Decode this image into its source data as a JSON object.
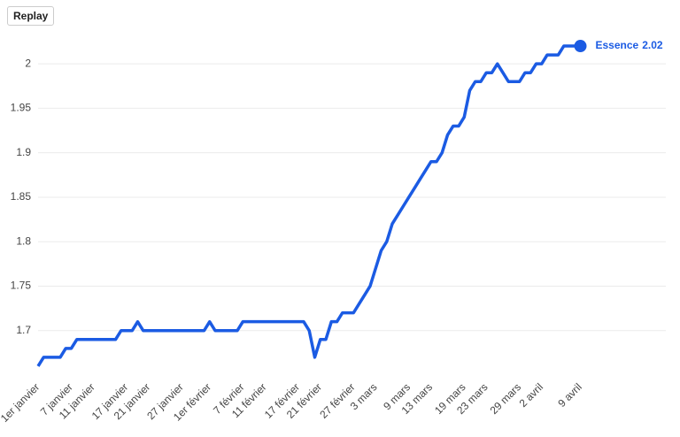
{
  "button": "Replay",
  "chart_data": {
    "type": "line",
    "categories": [
      "1er janvier",
      null,
      null,
      null,
      null,
      null,
      "7 janvier",
      null,
      null,
      null,
      "11 janvier",
      null,
      null,
      null,
      null,
      null,
      "17 janvier",
      null,
      null,
      null,
      "21 janvier",
      null,
      null,
      null,
      null,
      null,
      "27 janvier",
      null,
      null,
      null,
      null,
      "1er février",
      null,
      null,
      null,
      null,
      null,
      "7 février",
      null,
      null,
      null,
      "11 février",
      null,
      null,
      null,
      null,
      null,
      "17 février",
      null,
      null,
      null,
      "21 février",
      null,
      null,
      null,
      null,
      null,
      "27 février",
      null,
      null,
      null,
      "3 mars",
      null,
      null,
      null,
      null,
      null,
      "9 mars",
      null,
      null,
      null,
      "13 mars",
      null,
      null,
      null,
      null,
      null,
      "19 mars",
      null,
      null,
      null,
      "23 mars",
      null,
      null,
      null,
      null,
      null,
      "29 mars",
      null,
      null,
      null,
      "2 avril",
      null,
      null,
      null,
      null,
      null,
      null,
      "9 avril"
    ],
    "series": [
      {
        "name": "Essence",
        "color": "#1b5be3",
        "values": [
          1.66,
          1.67,
          1.67,
          1.67,
          1.67,
          1.68,
          1.68,
          1.69,
          1.69,
          1.69,
          1.69,
          1.69,
          1.69,
          1.69,
          1.69,
          1.7,
          1.7,
          1.7,
          1.71,
          1.7,
          1.7,
          1.7,
          1.7,
          1.7,
          1.7,
          1.7,
          1.7,
          1.7,
          1.7,
          1.7,
          1.7,
          1.71,
          1.7,
          1.7,
          1.7,
          1.7,
          1.7,
          1.71,
          1.71,
          1.71,
          1.71,
          1.71,
          1.71,
          1.71,
          1.71,
          1.71,
          1.71,
          1.71,
          1.71,
          1.7,
          1.67,
          1.69,
          1.69,
          1.71,
          1.71,
          1.72,
          1.72,
          1.72,
          1.73,
          1.74,
          1.75,
          1.77,
          1.79,
          1.8,
          1.82,
          1.83,
          1.84,
          1.85,
          1.86,
          1.87,
          1.88,
          1.89,
          1.89,
          1.9,
          1.92,
          1.93,
          1.93,
          1.94,
          1.97,
          1.98,
          1.98,
          1.99,
          1.99,
          2.0,
          1.99,
          1.98,
          1.98,
          1.98,
          1.99,
          1.99,
          2.0,
          2.0,
          2.01,
          2.01,
          2.01,
          2.02,
          2.02,
          2.02,
          2.02
        ]
      }
    ],
    "ylim": [
      1.65,
      2.03
    ],
    "yticks": [
      1.7,
      1.75,
      1.8,
      1.85,
      1.9,
      1.95,
      2
    ],
    "grid": true
  }
}
